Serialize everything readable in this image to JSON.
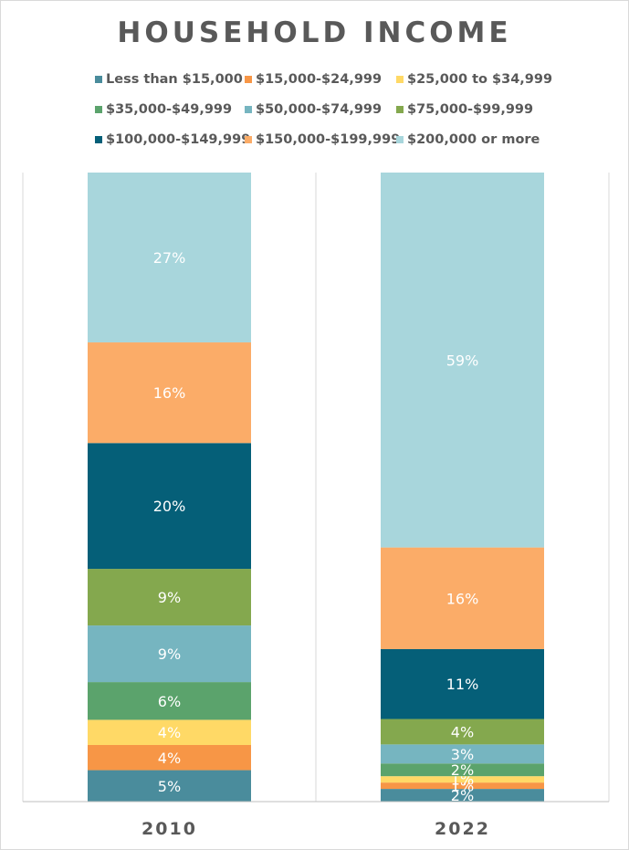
{
  "chart_data": {
    "type": "bar",
    "stacked": true,
    "normalized": true,
    "title": "HOUSEHOLD INCOME",
    "categories": [
      "2010",
      "2022"
    ],
    "legend_position": "top",
    "series": [
      {
        "name": "Less than $15,000",
        "color": "#4a8c9c",
        "values": [
          5,
          2
        ],
        "labels": [
          "5%",
          "2%"
        ]
      },
      {
        "name": "$15,000-$24,999",
        "color": "#f79646",
        "values": [
          4,
          1
        ],
        "labels": [
          "4%",
          "1%"
        ]
      },
      {
        "name": "$25,000 to $34,999",
        "color": "#ffd966",
        "values": [
          4,
          1
        ],
        "labels": [
          "4%",
          "1%"
        ]
      },
      {
        "name": "$35,000-$49,999",
        "color": "#5ba36c",
        "values": [
          6,
          2
        ],
        "labels": [
          "6%",
          "2%"
        ]
      },
      {
        "name": "$50,000-$74,999",
        "color": "#76b5c0",
        "values": [
          9,
          3
        ],
        "labels": [
          "9%",
          "3%"
        ]
      },
      {
        "name": "$75,000-$99,999",
        "color": "#84a84e",
        "values": [
          9,
          4
        ],
        "labels": [
          "9%",
          "4%"
        ]
      },
      {
        "name": "$100,000-$149,999",
        "color": "#055f78",
        "values": [
          20,
          11
        ],
        "labels": [
          "20%",
          "11%"
        ]
      },
      {
        "name": "$150,000-$199,999",
        "color": "#fbac68",
        "values": [
          16,
          16
        ],
        "labels": [
          "16%",
          "16%"
        ]
      },
      {
        "name": "$200,000 or more",
        "color": "#a8d6dc",
        "values": [
          27,
          59
        ],
        "labels": [
          "27%",
          "59%"
        ]
      }
    ]
  }
}
